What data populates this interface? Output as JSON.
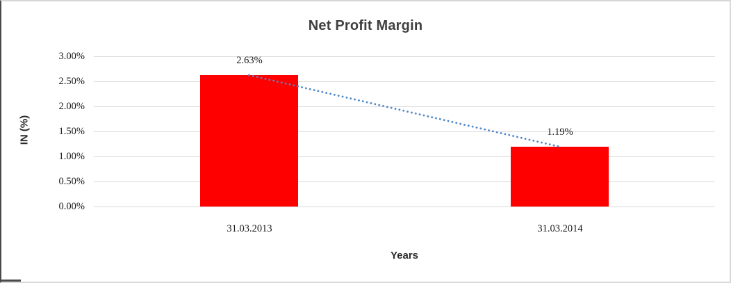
{
  "chart_data": {
    "type": "bar",
    "title": "Net Profit Margin",
    "xlabel": "Years",
    "ylabel": "IN (%)",
    "categories": [
      "31.03.2013",
      "31.03.2014"
    ],
    "values": [
      2.63,
      1.19
    ],
    "value_labels": [
      "2.63%",
      "1.19%"
    ],
    "ylim": [
      0,
      3
    ],
    "ytick_step": 0.5,
    "ytick_labels": [
      "3.00%",
      "2.50%",
      "2.00%",
      "1.50%",
      "1.00%",
      "0.50%",
      "0.00%"
    ],
    "grid": true,
    "legend": "none",
    "bar_color": "#ff0000",
    "gridline_color": "#d9d9d9",
    "trendline": {
      "style": "dotted",
      "color": "#4e87c8",
      "from": "top of 31.03.2013 bar",
      "to": "top of 31.03.2014 bar"
    }
  }
}
